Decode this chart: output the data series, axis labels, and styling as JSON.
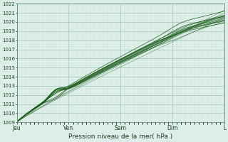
{
  "title": "",
  "xlabel": "Pression niveau de la mer( hPa )",
  "ylabel": "",
  "ylim": [
    1009,
    1022
  ],
  "xlim": [
    0,
    96
  ],
  "yticks": [
    1009,
    1010,
    1011,
    1012,
    1013,
    1014,
    1015,
    1016,
    1017,
    1018,
    1019,
    1020,
    1021,
    1022
  ],
  "xtick_positions": [
    0,
    24,
    48,
    72,
    96
  ],
  "xtick_labels": [
    "Jeu",
    "Ven",
    "Sam",
    "Dim",
    "L"
  ],
  "background_color": "#ddeee8",
  "grid_major_color": "#aaccbb",
  "grid_minor_color": "#c8ddd5",
  "line_color": "#1a5c1a",
  "n_hours": 96
}
